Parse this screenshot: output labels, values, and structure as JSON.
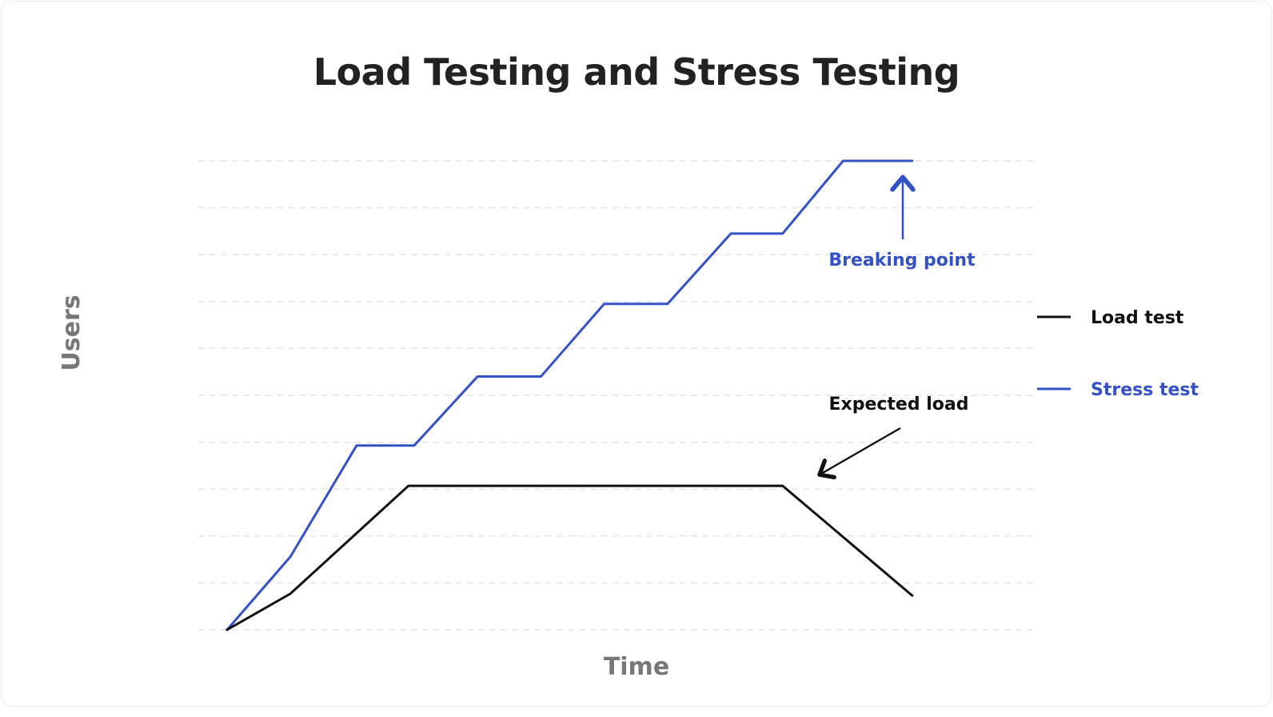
{
  "chart_data": {
    "type": "line",
    "title": "Load Testing and Stress Testing",
    "xlabel": "Time",
    "ylabel": "Users",
    "xlim": [
      0,
      24
    ],
    "ylim": [
      0,
      10
    ],
    "grid": true,
    "legend_position": "right",
    "series": [
      {
        "name": "Load test",
        "color": "#111111",
        "x": [
          1,
          3.2,
          7.3,
          20.3,
          24.8
        ],
        "y": [
          0,
          0.77,
          3.07,
          3.07,
          0.73
        ]
      },
      {
        "name": "Stress test",
        "color": "#3451c6",
        "x": [
          1,
          3.2,
          5.5,
          7.5,
          9.7,
          11.9,
          14.1,
          16.3,
          18.5,
          20.3,
          22.4,
          24.8
        ],
        "y": [
          0,
          1.56,
          3.93,
          3.93,
          5.4,
          5.4,
          6.95,
          6.95,
          8.45,
          8.45,
          10,
          10
        ]
      }
    ],
    "annotations": [
      {
        "text": "Breaking point",
        "color": "#3451c6"
      },
      {
        "text": "Expected load",
        "color": "#111111"
      }
    ]
  }
}
